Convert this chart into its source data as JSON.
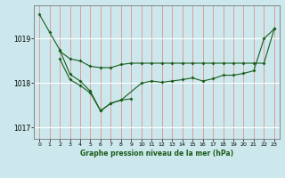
{
  "background_color": "#cce8ec",
  "grid_color_v": "#e8a0a0",
  "grid_color_h": "#ffffff",
  "line_color": "#1a5c1a",
  "xlabel": "Graphe pression niveau de la mer (hPa)",
  "ylim": [
    1016.75,
    1019.75
  ],
  "xlim": [
    -0.5,
    23.5
  ],
  "yticks": [
    1017,
    1018,
    1019
  ],
  "xtick_labels": [
    "0",
    "1",
    "2",
    "3",
    "4",
    "5",
    "6",
    "7",
    "8",
    "9",
    "10",
    "11",
    "12",
    "13",
    "14",
    "15",
    "16",
    "17",
    "18",
    "19",
    "20",
    "21",
    "22",
    "23"
  ],
  "series1_x": [
    0,
    1,
    2,
    3,
    4,
    5,
    6,
    7,
    8,
    10,
    11,
    12,
    13,
    14,
    15,
    16,
    17,
    18,
    19,
    20,
    21,
    22,
    23
  ],
  "series1_y": [
    1019.55,
    1019.15,
    1018.75,
    1018.2,
    1018.05,
    1017.82,
    1017.38,
    1017.55,
    1017.62,
    1018.0,
    1018.05,
    1018.02,
    1018.05,
    1018.08,
    1018.12,
    1018.05,
    1018.1,
    1018.18,
    1018.18,
    1018.22,
    1018.28,
    1019.0,
    1019.22
  ],
  "series2_x": [
    2,
    3,
    4,
    5,
    6,
    7,
    8,
    9,
    10,
    11,
    12,
    13,
    14,
    15,
    16,
    17,
    18,
    19,
    20,
    21,
    22,
    23
  ],
  "series2_y": [
    1018.72,
    1018.55,
    1018.5,
    1018.38,
    1018.35,
    1018.35,
    1018.42,
    1018.45,
    1018.45,
    1018.45,
    1018.45,
    1018.45,
    1018.45,
    1018.45,
    1018.45,
    1018.45,
    1018.45,
    1018.45,
    1018.45,
    1018.45,
    1018.45,
    1019.22
  ],
  "series3_x": [
    2,
    3,
    4,
    5,
    6,
    7,
    8,
    9
  ],
  "series3_y": [
    1018.55,
    1018.08,
    1017.95,
    1017.78,
    1017.38,
    1017.55,
    1017.62,
    1017.65
  ]
}
